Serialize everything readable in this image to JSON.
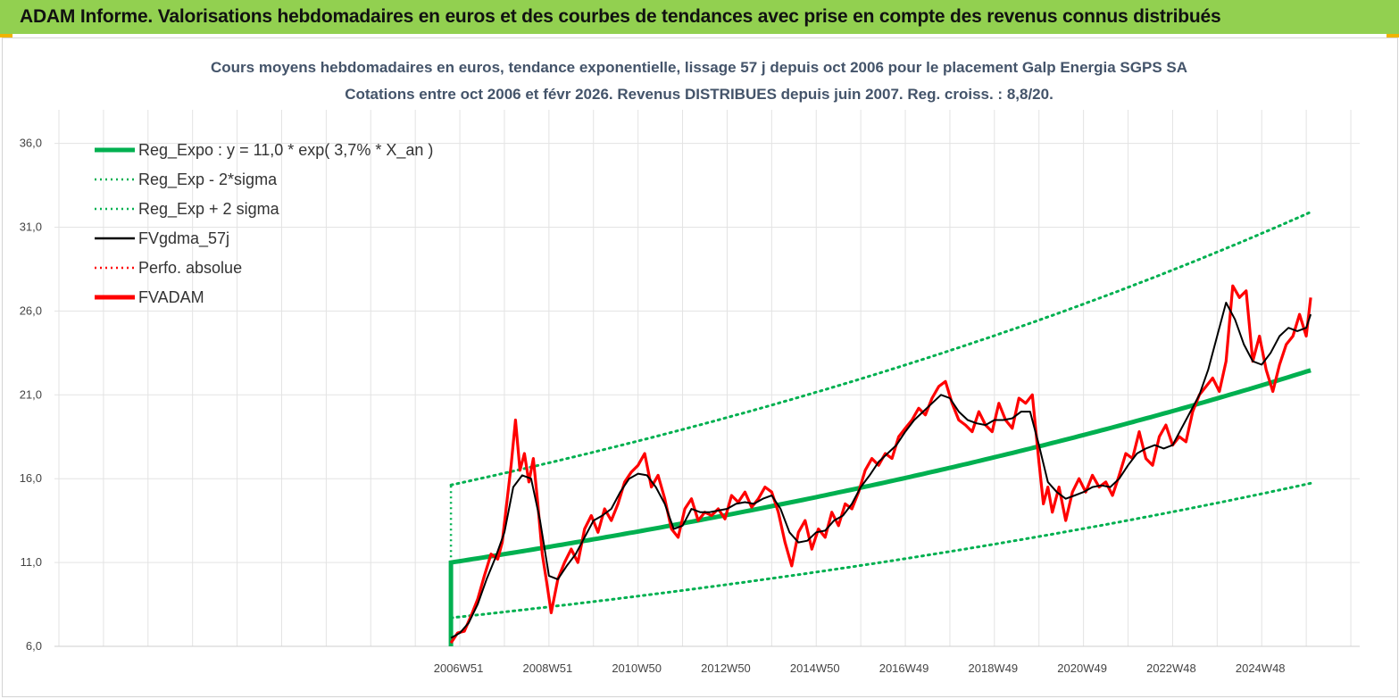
{
  "header": {
    "title": "ADAM Informe. Valorisations hebdomadaires en euros et des courbes de tendances avec prise en compte des revenus connus distribués"
  },
  "colors": {
    "header_bg": "#92d050",
    "trend": "#00b050",
    "smooth": "#000000",
    "price": "#ff0000"
  },
  "chart_data": {
    "type": "line",
    "title_lines": [
      "Cours moyens hebdomadaires en euros, tendance exponentielle, lissage 57 j depuis oct 2006 pour le placement Galp Energia SGPS SA",
      "Cotations entre oct 2006 et févr 2026. Revenus DISTRIBUES depuis juin 2007. Reg. croiss. : 8,8/20."
    ],
    "xlabel": "",
    "ylabel": "",
    "ylim": [
      6,
      38
    ],
    "yticks": [
      "6,0",
      "11,0",
      "16,0",
      "21,0",
      "26,0",
      "31,0",
      "36,0"
    ],
    "xticks": [
      "2006W51",
      "2008W51",
      "2010W50",
      "2012W50",
      "2014W50",
      "2016W49",
      "2018W49",
      "2020W49",
      "2022W48",
      "2024W48"
    ],
    "xlim": [
      1997.9,
      2027.2
    ],
    "grid": true,
    "legend_position": "top-left",
    "legend": [
      {
        "name": "Reg_Expo : y = 11,0 * exp( 3,7% *  X_an )",
        "style": "thick-solid",
        "color": "#00b050"
      },
      {
        "name": "Reg_Exp - 2*sigma",
        "style": "dotted",
        "color": "#00b050"
      },
      {
        "name": "Reg_Exp + 2 sigma",
        "style": "dotted",
        "color": "#00b050"
      },
      {
        "name": "FVgdma_57j",
        "style": "solid",
        "color": "#000000"
      },
      {
        "name": "Perfo. absolue",
        "style": "dotted",
        "color": "#ff0000"
      },
      {
        "name": "FVADAM",
        "style": "thick-solid",
        "color": "#ff0000"
      }
    ],
    "trend": {
      "a": 11.0,
      "rate": 0.037,
      "x_start": 2006.8,
      "x_end": 2026.1,
      "lower_factor": 0.7,
      "upper_factor": 1.42
    },
    "series": [
      {
        "name": "FVADAM",
        "x": [
          2006.8,
          2006.95,
          2007.1,
          2007.25,
          2007.4,
          2007.55,
          2007.7,
          2007.85,
          2007.95,
          2008.05,
          2008.15,
          2008.25,
          2008.35,
          2008.45,
          2008.55,
          2008.65,
          2008.75,
          2008.85,
          2008.95,
          2009.05,
          2009.2,
          2009.35,
          2009.5,
          2009.65,
          2009.8,
          2009.95,
          2010.1,
          2010.25,
          2010.4,
          2010.55,
          2010.7,
          2010.85,
          2011.0,
          2011.15,
          2011.3,
          2011.45,
          2011.6,
          2011.75,
          2011.9,
          2012.05,
          2012.2,
          2012.35,
          2012.5,
          2012.65,
          2012.8,
          2012.95,
          2013.1,
          2013.25,
          2013.4,
          2013.55,
          2013.7,
          2013.85,
          2014.0,
          2014.15,
          2014.3,
          2014.45,
          2014.6,
          2014.75,
          2014.9,
          2015.05,
          2015.2,
          2015.35,
          2015.5,
          2015.65,
          2015.8,
          2015.95,
          2016.1,
          2016.25,
          2016.4,
          2016.55,
          2016.7,
          2016.85,
          2017.0,
          2017.15,
          2017.3,
          2017.45,
          2017.6,
          2017.75,
          2017.9,
          2018.05,
          2018.2,
          2018.35,
          2018.5,
          2018.65,
          2018.8,
          2018.95,
          2019.1,
          2019.25,
          2019.4,
          2019.55,
          2019.7,
          2019.85,
          2020.0,
          2020.1,
          2020.2,
          2020.3,
          2020.45,
          2020.6,
          2020.75,
          2020.9,
          2021.05,
          2021.2,
          2021.35,
          2021.5,
          2021.65,
          2021.8,
          2021.95,
          2022.1,
          2022.25,
          2022.4,
          2022.55,
          2022.7,
          2022.85,
          2023.0,
          2023.15,
          2023.3,
          2023.45,
          2023.6,
          2023.75,
          2023.9,
          2024.05,
          2024.2,
          2024.35,
          2024.5,
          2024.65,
          2024.8,
          2024.95,
          2025.1,
          2025.25,
          2025.4,
          2025.55,
          2025.7,
          2025.85,
          2026.0,
          2026.1
        ],
        "values": [
          6.2,
          6.8,
          6.9,
          7.8,
          8.8,
          10.2,
          11.5,
          11.2,
          12.2,
          14.5,
          16.8,
          19.5,
          16.5,
          17.5,
          15.8,
          17.2,
          14.5,
          11.5,
          9.8,
          8.0,
          10.0,
          11.0,
          11.8,
          11.0,
          13.0,
          13.8,
          12.8,
          14.2,
          13.5,
          14.5,
          15.8,
          16.4,
          16.8,
          17.5,
          15.5,
          16.2,
          14.8,
          13.0,
          12.5,
          14.2,
          14.8,
          13.5,
          14.0,
          13.8,
          14.2,
          13.6,
          15.0,
          14.6,
          15.2,
          14.3,
          14.8,
          15.5,
          15.2,
          14.0,
          12.2,
          10.8,
          12.8,
          13.5,
          11.8,
          13.0,
          12.5,
          14.0,
          13.2,
          14.5,
          14.2,
          15.2,
          16.5,
          17.2,
          16.8,
          17.5,
          17.2,
          18.5,
          19.0,
          19.5,
          20.2,
          19.8,
          20.8,
          21.5,
          21.8,
          20.5,
          19.5,
          19.2,
          18.8,
          20.0,
          19.2,
          18.8,
          20.5,
          19.5,
          19.0,
          20.8,
          20.5,
          21.0,
          17.0,
          14.5,
          15.5,
          14.0,
          15.5,
          13.5,
          15.2,
          16.0,
          15.2,
          16.2,
          15.5,
          15.8,
          15.0,
          16.2,
          17.5,
          17.2,
          18.8,
          17.2,
          16.8,
          18.5,
          19.2,
          18.0,
          18.5,
          18.2,
          20.0,
          21.0,
          21.5,
          22.0,
          21.2,
          23.0,
          27.5,
          26.8,
          27.2,
          23.0,
          24.5,
          22.5,
          21.2,
          22.8,
          24.0,
          24.5,
          25.8,
          24.5,
          26.8
        ]
      },
      {
        "name": "FVgdma_57j",
        "x": [
          2006.8,
          2007.0,
          2007.2,
          2007.4,
          2007.6,
          2007.8,
          2008.0,
          2008.2,
          2008.4,
          2008.6,
          2008.8,
          2009.0,
          2009.2,
          2009.4,
          2009.6,
          2009.8,
          2010.0,
          2010.2,
          2010.4,
          2010.6,
          2010.8,
          2011.0,
          2011.2,
          2011.4,
          2011.6,
          2011.8,
          2012.0,
          2012.2,
          2012.4,
          2012.6,
          2012.8,
          2013.0,
          2013.2,
          2013.4,
          2013.6,
          2013.8,
          2014.0,
          2014.2,
          2014.4,
          2014.6,
          2014.8,
          2015.0,
          2015.2,
          2015.4,
          2015.6,
          2015.8,
          2016.0,
          2016.2,
          2016.4,
          2016.6,
          2016.8,
          2017.0,
          2017.2,
          2017.4,
          2017.6,
          2017.8,
          2018.0,
          2018.2,
          2018.4,
          2018.6,
          2018.8,
          2019.0,
          2019.2,
          2019.4,
          2019.6,
          2019.8,
          2020.0,
          2020.2,
          2020.4,
          2020.6,
          2020.8,
          2021.0,
          2021.2,
          2021.4,
          2021.6,
          2021.8,
          2022.0,
          2022.2,
          2022.4,
          2022.6,
          2022.8,
          2023.0,
          2023.2,
          2023.4,
          2023.6,
          2023.8,
          2024.0,
          2024.2,
          2024.4,
          2024.6,
          2024.8,
          2025.0,
          2025.2,
          2025.4,
          2025.6,
          2025.8,
          2026.0,
          2026.1
        ],
        "values": [
          6.5,
          6.8,
          7.4,
          8.5,
          10.0,
          11.3,
          12.8,
          15.5,
          16.2,
          16.0,
          13.5,
          10.2,
          10.0,
          10.8,
          11.5,
          12.5,
          13.5,
          13.8,
          14.2,
          15.2,
          16.0,
          16.3,
          16.2,
          15.5,
          14.5,
          13.0,
          13.2,
          14.2,
          14.0,
          14.0,
          14.1,
          14.2,
          14.5,
          14.6,
          14.5,
          14.8,
          15.0,
          14.2,
          12.8,
          12.2,
          12.3,
          12.8,
          12.9,
          13.5,
          13.8,
          14.5,
          15.5,
          16.2,
          17.0,
          17.5,
          18.0,
          18.8,
          19.5,
          20.0,
          20.5,
          21.0,
          20.8,
          20.0,
          19.5,
          19.3,
          19.2,
          19.5,
          19.5,
          19.6,
          20.0,
          20.0,
          18.0,
          15.8,
          15.2,
          14.8,
          15.0,
          15.2,
          15.5,
          15.6,
          15.5,
          16.0,
          16.8,
          17.5,
          17.8,
          18.0,
          17.8,
          18.0,
          19.0,
          20.0,
          21.0,
          22.5,
          24.5,
          26.5,
          25.5,
          24.0,
          23.0,
          22.8,
          23.5,
          24.5,
          25.0,
          24.8,
          25.0,
          25.8
        ]
      }
    ]
  }
}
